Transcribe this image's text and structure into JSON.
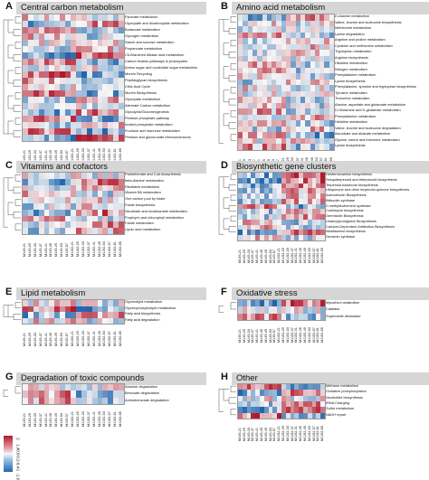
{
  "panels": [
    {
      "label": "A",
      "title": "Central carbon metabolism",
      "rows": [
        "Pyruvate metabolism",
        "Glyoxylate and dicarboxylate metabolism",
        "Butanoate metabolism",
        "Glycogen metabolism",
        "Starch and sucrose metabolism",
        "Propanoate metabolism",
        "C5-Branched dibasic acid metabolism",
        "Carbon fixation pathways in prokaryotes",
        "Amino sugar and nucleotide sugar metabolism",
        "Murein Recycling",
        "Peptidoglycan biosynthesis",
        "Citric Acid Cycle",
        "Murein Biosynthesis",
        "Glyoxylate metabolism",
        "Alternate Carbon metabolism",
        "Glycolysis/Gluconeogenesis",
        "Pentose phosphate pathway",
        "Inositol phosphate metabolism",
        "Fructose and mannose metabolism",
        "Pentose and glucuronate interconversions"
      ],
      "cols": [
        "M145-21",
        "M145-29",
        "M145-33",
        "M145-37",
        "M145-41",
        "M145-45",
        "M145-49",
        "M145-53",
        "M145-57",
        "M1152-21",
        "M1152-29",
        "M1152-33",
        "M1152-37",
        "M1152-41",
        "M1152-45",
        "M1152-53",
        "M1152-57",
        "M1152-61",
        "M1152-65"
      ]
    },
    {
      "label": "B",
      "title": "Amino acid metabolism",
      "rows": [
        "D-Alanine metabolism",
        "Valine, leucine and isoleucine biosynthesis",
        "Methionine metabolism",
        "Lysine degradation",
        "Arginine and proline metabolism",
        "Cysteine and methionine metabolism",
        "Tryptophan metabolism",
        "Arginine biosynthesis",
        "Histidine metabolism",
        "Nitrogen metabolism",
        "Phenylalanine metabolism",
        "Lysine biosynthesis",
        "Phenylalanine, tyrosine and tryptophan biosynthesis",
        "Tyrosine metabolism",
        "Threonine metabolism",
        "Alanine, aspartate and glutamate metabolism",
        "D-Glutamine and D-glutamate metabolism",
        "Phenylalanine metabolism",
        "Histidine metabolism",
        "Valine, leucine and isoleucine degradation",
        "Ascorbate and aldarate metabolism",
        "Glycine, serine and threonine metabolism",
        "Lysine biosynthesis"
      ],
      "cols": [
        "M145-21",
        "M145-29",
        "M145-33",
        "M145-37",
        "M145-41",
        "M145-45",
        "M145-49",
        "M145-53",
        "M145-57",
        "M1152-21",
        "M1152-29",
        "M1152-33",
        "M1152-37",
        "M1152-41",
        "M1152-45",
        "M1152-49",
        "M1152-53",
        "M1152-57",
        "M1152-61",
        "M1152-65"
      ]
    },
    {
      "label": "C",
      "title": "Vitamins and cofactors",
      "rows": [
        "Pantothenate and CoA biosynthesis",
        "beta-Alanine metabolism",
        "Riboflavin metabolism",
        "Vitamin B6 metabolism",
        "One carbon pool by folate",
        "Folate biosynthesis",
        "Nicotinate and nicotinamide metabolism",
        "Porphyrin and chlorophyll metabolism",
        "Folate metabolism",
        "Lipoic acid metabolism"
      ],
      "cols": [
        "M145-21",
        "M145-29",
        "M145-33",
        "M145-37",
        "M145-41",
        "M145-45",
        "M145-49",
        "M145-53",
        "M145-57",
        "M1152-21",
        "M1152-29",
        "M1152-33",
        "M1152-37",
        "M1152-41",
        "M1152-45",
        "M1152-53",
        "M1152-57",
        "M1152-61",
        "M1152-65"
      ]
    },
    {
      "label": "D",
      "title": "Biosynthetic gene clusters",
      "rows": [
        "Desferrioxamine biosynthesis",
        "Sesquiterpenoid and triterpenoid biosynthesis",
        "Terpenoid backbone biosynthesis",
        "Ubiquinone and other terpenoid-quinone biosynthesis",
        "Actinorhodin Biosynthesis",
        "Bifiavolin synthase",
        "2-methylisoborneol synthase",
        "Coelimycin biosynthesis",
        "Germicidin Biosynthesis",
        "Undecylprodigiosin Biosynthesis",
        "Calcium-Dependent Antibiotics Biosynthesis",
        "Albaflavenol biosynthesis",
        "Geosmin synthase"
      ],
      "cols": [
        "M145-21",
        "M145-29",
        "M145-33",
        "M145-37",
        "M145-41",
        "M145-45",
        "M145-49",
        "M145-53",
        "M145-57",
        "M1152-21",
        "M1152-29",
        "M1152-33",
        "M1152-37",
        "M1152-41",
        "M1152-45",
        "M1152-49",
        "M1152-53",
        "M1152-57",
        "M1152-61",
        "M1152-65"
      ]
    },
    {
      "label": "E",
      "title": "Lipid metabolism",
      "rows": [
        "Glycerolipid metabolism",
        "Glycerophospholipid metabolism",
        "Fatty acid biosynthesis",
        "Fatty acid degradation"
      ],
      "cols": [
        "M145-21",
        "M145-29",
        "M145-33",
        "M145-37",
        "M145-41",
        "M145-45",
        "M145-49",
        "M145-53",
        "M145-57",
        "M1152-21",
        "M1152-29",
        "M1152-33",
        "M1152-37",
        "M1152-41",
        "M1152-45",
        "M1152-53",
        "M1152-57",
        "M1152-61",
        "M1152-65"
      ]
    },
    {
      "label": "F",
      "title": "Oxidative stress",
      "rows": [
        "Mycothiol metabolism",
        "Catalase",
        "Superoxide dismutase"
      ],
      "cols": [
        "M145-21",
        "M145-29",
        "M145-33",
        "M145-37",
        "M145-41",
        "M145-45",
        "M145-49",
        "M145-53",
        "M145-57",
        "M1152-21",
        "M1152-29",
        "M1152-33",
        "M1152-37",
        "M1152-41",
        "M1152-45",
        "M1152-49",
        "M1152-53",
        "M1152-57",
        "M1152-61",
        "M1152-65"
      ]
    },
    {
      "label": "G",
      "title": "Degradation of toxic compounds",
      "rows": [
        "Atrazine degradation",
        "Benzoate degradation",
        "Aminobenzoate degradation"
      ],
      "cols": [
        "M145-21",
        "M145-29",
        "M145-33",
        "M145-37",
        "M145-41",
        "M145-45",
        "M145-49",
        "M145-53",
        "M145-57",
        "M1152-21",
        "M1152-29",
        "M1152-33",
        "M1152-37",
        "M1152-41",
        "M1152-45",
        "M1152-53",
        "M1152-57",
        "M1152-61",
        "M1152-65"
      ]
    },
    {
      "label": "H",
      "title": "Other",
      "rows": [
        "Methane metabolism",
        "Oxidative phosphorylation",
        "Nucleotide biosynthesis",
        "tRNA Charging",
        "Sulfur metabolism",
        "NADH repair"
      ],
      "cols": [
        "M145-21",
        "M145-29",
        "M145-33",
        "M145-37",
        "M145-41",
        "M145-45",
        "M145-49",
        "M145-53",
        "M145-57",
        "M1152-21",
        "M1152-29",
        "M1152-33",
        "M1152-37",
        "M1152-41",
        "M1152-45",
        "M1152-49",
        "M1152-53",
        "M1152-57",
        "M1152-61",
        "M1152-65"
      ]
    }
  ],
  "legend": {
    "ticks": [
      "2",
      "1.4",
      "0.8",
      "0.2",
      "-0.4",
      "-1",
      "-1.6"
    ]
  },
  "colors": {
    "high": "#b2182b",
    "mid": "#f7f7f7",
    "low": "#2166ac"
  }
}
